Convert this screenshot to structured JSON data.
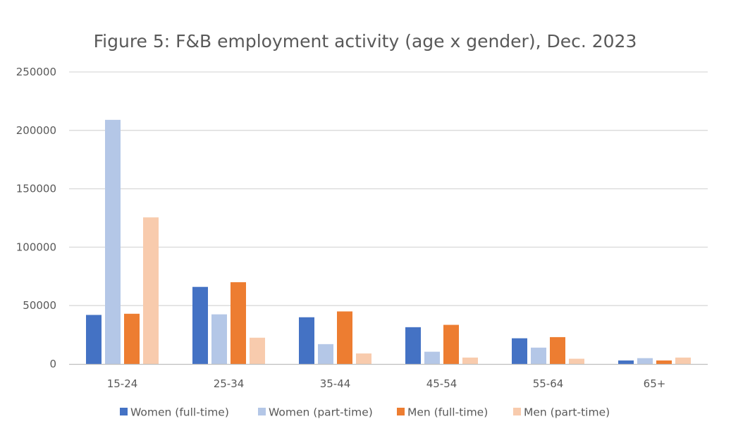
{
  "chart_data": {
    "type": "bar",
    "title": "Figure 5: F&B employment activity (age x gender), Dec. 2023",
    "categories": [
      "15-24",
      "25-34",
      "35-44",
      "45-54",
      "55-64",
      "65+"
    ],
    "series": [
      {
        "name": "Women (full-time)",
        "color": "#4472C4",
        "values": [
          42000,
          66000,
          40000,
          31500,
          22000,
          3000
        ]
      },
      {
        "name": "Women (part-time)",
        "color": "#B4C7E7",
        "values": [
          209000,
          42500,
          17000,
          10500,
          14000,
          5000
        ]
      },
      {
        "name": "Men (full-time)",
        "color": "#ED7D31",
        "values": [
          43000,
          70000,
          45000,
          33500,
          23000,
          3000
        ]
      },
      {
        "name": "Men (part-time)",
        "color": "#F8CBAD",
        "values": [
          125500,
          22500,
          9000,
          5500,
          4500,
          5500
        ]
      }
    ],
    "yticks": [
      "0",
      "50000",
      "100000",
      "150000",
      "200000",
      "250000"
    ],
    "ylim": [
      0,
      250000
    ],
    "grid": true,
    "legend_position": "bottom"
  }
}
